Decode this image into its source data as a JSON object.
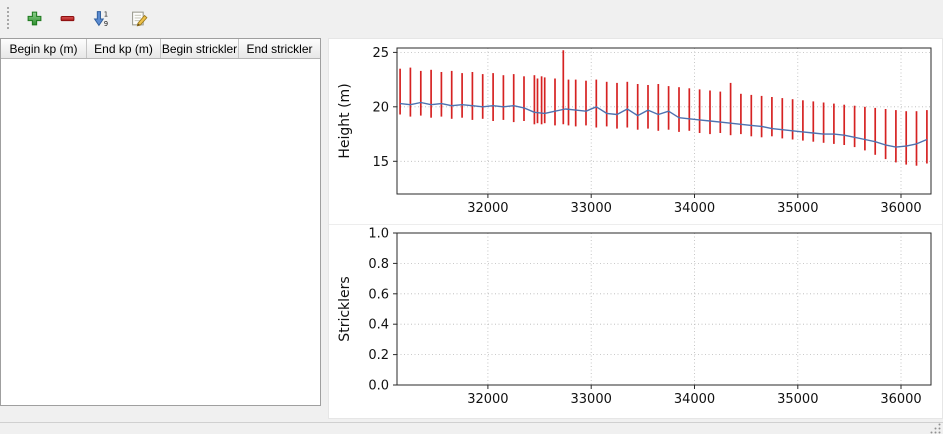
{
  "window": {
    "background": "#f0f0f0"
  },
  "toolbar": {
    "buttons": [
      {
        "action": "add-row",
        "icon": "plus-icon",
        "color": "#3fa13f"
      },
      {
        "action": "remove-row",
        "icon": "minus-icon",
        "color": "#c01818"
      },
      {
        "action": "sort-rows",
        "icon": "sort-numeric-icon",
        "color": "#4a76b8",
        "digits_top": "1",
        "digits_bottom": "9"
      },
      {
        "action": "edit-row",
        "icon": "edit-pencil-icon",
        "color": "#e8b33c"
      }
    ]
  },
  "table": {
    "columns": [
      "Begin kp (m)",
      "End kp (m)",
      "Begin strickler",
      "End strickler"
    ],
    "rows": []
  },
  "chart_data": [
    {
      "type": "line",
      "title": "",
      "xlabel": "",
      "ylabel": "Height (m)",
      "xlim": [
        31120,
        36290
      ],
      "ylim": [
        12.0,
        25.4
      ],
      "xticks": [
        32000,
        33000,
        34000,
        35000,
        36000
      ],
      "xticklabels": [
        "32000",
        "33000",
        "34000",
        "35000",
        "36000"
      ],
      "yticks": [
        15,
        20,
        25
      ],
      "yticklabels": [
        "15",
        "20",
        "25"
      ],
      "grid": true,
      "legend": "none",
      "colors": {
        "bars": "#d62222",
        "line": "#4d72b0"
      },
      "bars_note": "vertical red range bars [x, ymin, ymax] (cross-section min/max heights)",
      "bars": [
        [
          31150,
          19.3,
          23.5
        ],
        [
          31250,
          19.1,
          23.6
        ],
        [
          31350,
          19.2,
          23.3
        ],
        [
          31450,
          19.0,
          23.4
        ],
        [
          31550,
          19.1,
          23.2
        ],
        [
          31650,
          18.9,
          23.3
        ],
        [
          31750,
          19.0,
          23.1
        ],
        [
          31850,
          18.8,
          23.2
        ],
        [
          31950,
          18.9,
          23.0
        ],
        [
          32050,
          18.7,
          23.1
        ],
        [
          32150,
          18.8,
          22.9
        ],
        [
          32250,
          18.6,
          23.0
        ],
        [
          32350,
          18.7,
          22.8
        ],
        [
          32450,
          18.4,
          22.9
        ],
        [
          32480,
          18.5,
          22.6
        ],
        [
          32520,
          18.4,
          22.8
        ],
        [
          32550,
          18.5,
          22.7
        ],
        [
          32650,
          18.3,
          22.6
        ],
        [
          32730,
          18.4,
          25.2
        ],
        [
          32780,
          18.3,
          22.5
        ],
        [
          32850,
          18.2,
          22.5
        ],
        [
          32950,
          18.3,
          22.4
        ],
        [
          33050,
          18.1,
          22.5
        ],
        [
          33150,
          18.2,
          22.3
        ],
        [
          33250,
          18.0,
          22.2
        ],
        [
          33350,
          18.1,
          22.3
        ],
        [
          33450,
          17.9,
          22.1
        ],
        [
          33550,
          18.0,
          22.0
        ],
        [
          33650,
          17.8,
          22.1
        ],
        [
          33750,
          17.9,
          21.9
        ],
        [
          33850,
          17.7,
          21.8
        ],
        [
          33950,
          17.8,
          21.7
        ],
        [
          34050,
          17.6,
          21.6
        ],
        [
          34150,
          17.5,
          21.5
        ],
        [
          34250,
          17.6,
          21.4
        ],
        [
          34350,
          17.4,
          22.2
        ],
        [
          34450,
          17.5,
          21.2
        ],
        [
          34550,
          17.3,
          21.1
        ],
        [
          34650,
          17.2,
          21.0
        ],
        [
          34750,
          17.3,
          20.9
        ],
        [
          34850,
          17.1,
          20.8
        ],
        [
          34950,
          17.0,
          20.7
        ],
        [
          35050,
          16.9,
          20.6
        ],
        [
          35150,
          16.8,
          20.5
        ],
        [
          35250,
          16.7,
          20.4
        ],
        [
          35350,
          16.6,
          20.3
        ],
        [
          35450,
          16.5,
          20.2
        ],
        [
          35550,
          16.3,
          20.1
        ],
        [
          35650,
          16.0,
          20.0
        ],
        [
          35750,
          15.6,
          19.9
        ],
        [
          35850,
          15.2,
          19.8
        ],
        [
          35950,
          14.9,
          19.7
        ],
        [
          36050,
          14.7,
          19.6
        ],
        [
          36150,
          14.6,
          19.6
        ],
        [
          36250,
          14.8,
          19.7
        ]
      ],
      "line": {
        "x": [
          31150,
          31250,
          31350,
          31450,
          31550,
          31650,
          31750,
          31850,
          31950,
          32050,
          32150,
          32250,
          32350,
          32450,
          32550,
          32650,
          32750,
          32850,
          32950,
          33050,
          33150,
          33250,
          33350,
          33450,
          33550,
          33650,
          33750,
          33850,
          33950,
          34050,
          34150,
          34250,
          34350,
          34450,
          34550,
          34650,
          34750,
          34850,
          34950,
          35050,
          35150,
          35250,
          35350,
          35450,
          35550,
          35650,
          35750,
          35850,
          35950,
          36050,
          36150,
          36250
        ],
        "y": [
          20.3,
          20.2,
          20.4,
          20.2,
          20.3,
          20.1,
          20.2,
          20.1,
          20.0,
          20.1,
          20.0,
          20.1,
          19.9,
          19.5,
          19.4,
          19.6,
          19.8,
          19.7,
          19.6,
          20.0,
          19.4,
          19.3,
          19.8,
          19.2,
          19.7,
          19.3,
          19.6,
          19.0,
          18.9,
          18.8,
          18.7,
          18.6,
          18.5,
          18.4,
          18.3,
          18.2,
          18.0,
          17.9,
          17.8,
          17.7,
          17.6,
          17.5,
          17.5,
          17.4,
          17.2,
          17.0,
          16.8,
          16.5,
          16.3,
          16.4,
          16.6,
          17.0
        ]
      }
    },
    {
      "type": "line",
      "title": "",
      "xlabel": "",
      "ylabel": "Stricklers",
      "xlim": [
        31120,
        36290
      ],
      "ylim": [
        0,
        1
      ],
      "xticks": [
        32000,
        33000,
        34000,
        35000,
        36000
      ],
      "xticklabels": [
        "32000",
        "33000",
        "34000",
        "35000",
        "36000"
      ],
      "yticks": [
        0,
        0.2,
        0.4,
        0.6,
        0.8,
        1
      ],
      "yticklabels": [
        "0.0",
        "0.2",
        "0.4",
        "0.6",
        "0.8",
        "1.0"
      ],
      "grid": true,
      "legend": "none",
      "colors": {
        "bars": "#d62222",
        "line": "#4d72b0"
      },
      "bars": [],
      "line": {
        "x": [],
        "y": []
      }
    }
  ],
  "statusbar": {
    "text": ""
  }
}
